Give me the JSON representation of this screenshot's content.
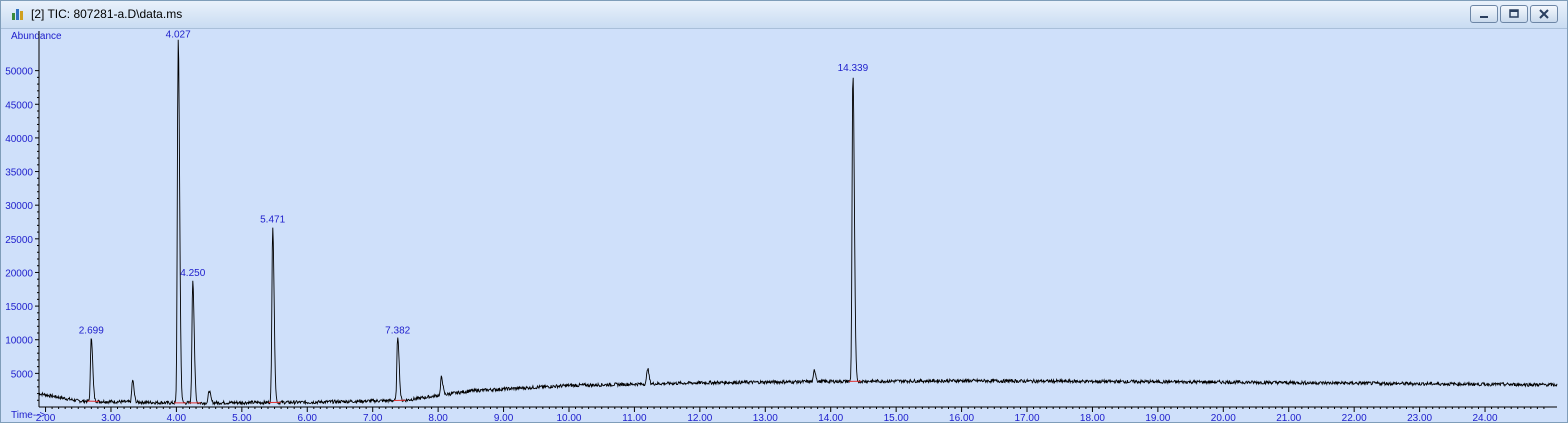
{
  "window": {
    "title": "[2] TIC: 807281-a.D\\data.ms",
    "icons": [
      "app-icon",
      "minimize-icon",
      "restore-icon",
      "close-icon"
    ]
  },
  "chart_data": {
    "type": "line",
    "ylabel": "Abundance",
    "xlabel": "Time-->",
    "xlim": [
      1.9,
      25.1
    ],
    "ylim": [
      0,
      55000
    ],
    "x_ticks": [
      "2.00",
      "3.00",
      "4.00",
      "5.00",
      "6.00",
      "7.00",
      "8.00",
      "9.00",
      "10.00",
      "11.00",
      "12.00",
      "13.00",
      "14.00",
      "15.00",
      "16.00",
      "17.00",
      "18.00",
      "19.00",
      "20.00",
      "21.00",
      "22.00",
      "23.00",
      "24.00"
    ],
    "y_ticks": [
      "5000",
      "10000",
      "15000",
      "20000",
      "25000",
      "30000",
      "35000",
      "40000",
      "45000",
      "50000"
    ],
    "peak_labels": [
      {
        "rt": 2.699,
        "label": "2.699",
        "abundance": 10500
      },
      {
        "rt": 4.027,
        "label": "4.027",
        "abundance": 54500
      },
      {
        "rt": 4.25,
        "label": "4.250",
        "abundance": 19000
      },
      {
        "rt": 5.471,
        "label": "5.471",
        "abundance": 27000
      },
      {
        "rt": 7.382,
        "label": "7.382",
        "abundance": 10500
      },
      {
        "rt": 14.339,
        "label": "14.339",
        "abundance": 49500
      }
    ],
    "minor_peaks": [
      {
        "rt": 3.33,
        "abundance": 4000
      },
      {
        "rt": 4.5,
        "abundance": 2500
      },
      {
        "rt": 8.05,
        "abundance": 4500
      },
      {
        "rt": 11.2,
        "abundance": 5800
      },
      {
        "rt": 13.75,
        "abundance": 5500
      }
    ],
    "baseline": [
      {
        "x": 1.9,
        "y": 2000
      },
      {
        "x": 2.5,
        "y": 900
      },
      {
        "x": 4.0,
        "y": 600
      },
      {
        "x": 6.0,
        "y": 700
      },
      {
        "x": 7.5,
        "y": 1000
      },
      {
        "x": 8.5,
        "y": 2400
      },
      {
        "x": 10.0,
        "y": 3200
      },
      {
        "x": 12.0,
        "y": 3600
      },
      {
        "x": 14.0,
        "y": 3800
      },
      {
        "x": 16.0,
        "y": 3900
      },
      {
        "x": 20.0,
        "y": 3700
      },
      {
        "x": 25.0,
        "y": 3300
      }
    ],
    "colors": {
      "trace": "#000000",
      "labels": "#1e1ecc",
      "integration": "#e03030",
      "background": "#cfe0fa"
    }
  }
}
